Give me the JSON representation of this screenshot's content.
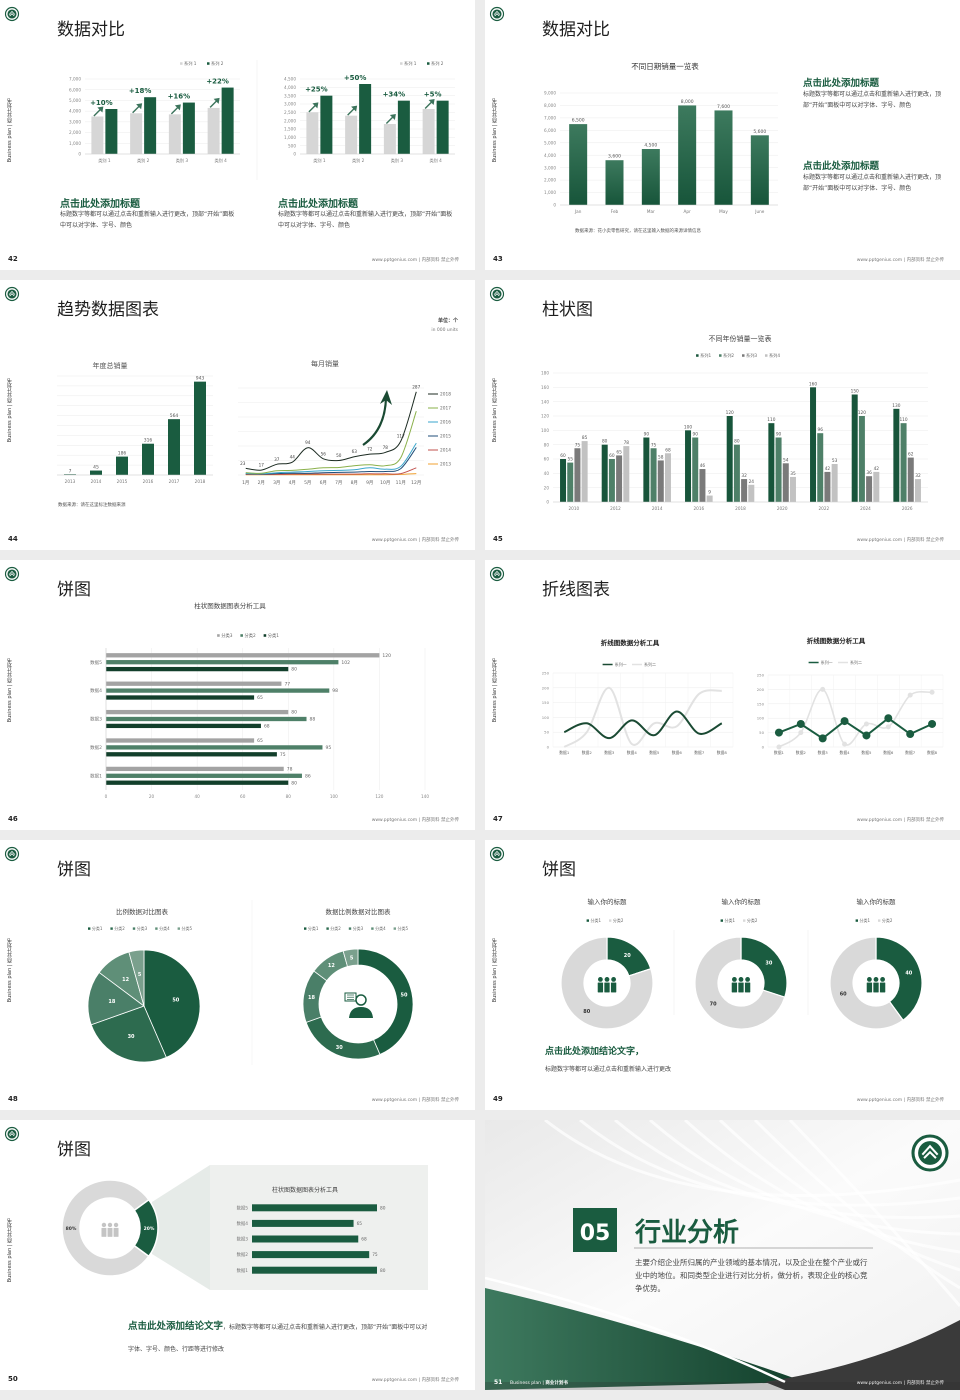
{
  "theme": {
    "primary": "#1a5c40",
    "mid_green": "#4e8068",
    "gray": "#d6d6d6",
    "dark_gray": "#7a7a7a",
    "page_bg": "#ececec"
  },
  "common": {
    "side_text": "Business plan | 商业计划书",
    "footer": "www.pptgenius.com | 内部资料 禁止外传"
  },
  "slides": [
    {
      "page": "42",
      "title": "数据对比",
      "charts": [
        {
          "type": "bar",
          "legend": [
            "系列 1",
            "系列 2"
          ],
          "colors": [
            "#d6d6d6",
            "#1a5c40"
          ],
          "categories": [
            "类别 1",
            "类别 2",
            "类别 3",
            "类别 4"
          ],
          "series": [
            {
              "name": "系列 1",
              "values": [
                3500,
                3800,
                3700,
                4300
              ]
            },
            {
              "name": "系列 2",
              "values": [
                4200,
                5300,
                4800,
                6200
              ]
            }
          ],
          "growth": [
            "+10%",
            "+18%",
            "+16%",
            "+22%"
          ],
          "ylim": [
            0,
            7000
          ],
          "ystep": 1000
        },
        {
          "type": "bar",
          "legend": [
            "系列 1",
            "系列 2"
          ],
          "colors": [
            "#d6d6d6",
            "#1a5c40"
          ],
          "categories": [
            "类别 1",
            "类别 2",
            "类别 3",
            "类别 4"
          ],
          "series": [
            {
              "name": "系列 1",
              "values": [
                2500,
                2300,
                1800,
                2700
              ]
            },
            {
              "name": "系列 2",
              "values": [
                3500,
                4200,
                3200,
                3200
              ]
            }
          ],
          "growth": [
            "+25%",
            "+50%",
            "+34%",
            "+5%"
          ],
          "ylim": [
            0,
            4500
          ],
          "ystep": 500
        }
      ],
      "blocks": [
        {
          "heading": "点击此处添加标题",
          "body": "标题数字等都可以通过点击和重新输入进行更改，顶部“开始”面板中可以对字体、字号、颜色"
        },
        {
          "heading": "点击此处添加标题",
          "body": "标题数字等都可以通过点击和重新输入进行更改，顶部“开始”面板中可以对字体、字号、颜色"
        }
      ]
    },
    {
      "page": "43",
      "title": "数据对比",
      "charts": [
        {
          "type": "bar",
          "title": "不同日期销量一览表",
          "colors": [
            "#1e5e42"
          ],
          "categories": [
            "Jan",
            "Feb",
            "Mar",
            "Apr",
            "May",
            "June"
          ],
          "series": [
            {
              "values": [
                6500,
                3600,
                4500,
                8000,
                7600,
                5600
              ]
            }
          ],
          "ylim": [
            0,
            9000
          ],
          "ystep": 1000
        }
      ],
      "source": "数据来源：花小卖零售研究，请在这里输入数据的来源详情信息",
      "blocks": [
        {
          "heading": "点击此处添加标题",
          "body": "标题数字等都可以通过点击和重新输入进行更改，顶部“开始”面板中可以对字体、字号、颜色"
        },
        {
          "heading": "点击此处添加标题",
          "body": "标题数字等都可以通过点击和重新输入进行更改，顶部“开始”面板中可以对字体、字号、颜色"
        }
      ]
    },
    {
      "page": "44",
      "title": "趋势数据图表",
      "unit": "单位：个",
      "unit_en": "in 000 units",
      "charts": [
        {
          "type": "bar",
          "title": "年度总销量",
          "colors": [
            "#1a5c40"
          ],
          "categories": [
            "2013",
            "2014",
            "2015",
            "2016",
            "2017",
            "2018"
          ],
          "series": [
            {
              "values": [
                7,
                45,
                186,
                316,
                564,
                943
              ]
            }
          ],
          "ylim": [
            0,
            1000
          ],
          "ystep": 100
        },
        {
          "type": "line",
          "title": "每月销量",
          "categories": [
            "1月",
            "2月",
            "3月",
            "4月",
            "5月",
            "6月",
            "7月",
            "8月",
            "9月",
            "10月",
            "11月",
            "12月"
          ],
          "colors": [
            "#1c2b22",
            "#8ab04a",
            "#3aa6cc",
            "#1f4e79",
            "#c0504d",
            "#f0a030"
          ],
          "series": [
            {
              "name": "2018",
              "values": [
                23,
                17,
                37,
                44,
                94,
                56,
                50,
                63,
                72,
                78,
                117,
                287
              ]
            },
            {
              "name": "2017",
              "values": [
                8,
                6,
                15,
                16,
                20,
                25,
                26,
                32,
                35,
                32,
                60,
                220
              ]
            },
            {
              "name": "2016",
              "values": [
                5,
                4,
                8,
                10,
                12,
                15,
                16,
                18,
                25,
                20,
                30,
                110
              ]
            },
            {
              "name": "2015",
              "values": [
                4,
                3,
                5,
                6,
                6,
                8,
                9,
                10,
                12,
                12,
                22,
                95
              ]
            },
            {
              "name": "2014",
              "values": [
                2,
                2,
                2,
                3,
                3,
                3,
                3,
                3,
                4,
                4,
                5,
                25
              ]
            },
            {
              "name": "2013",
              "values": [
                1,
                1,
                1,
                1,
                1,
                1,
                1,
                1,
                1,
                1,
                2,
                5
              ]
            }
          ],
          "ylim": [
            0,
            300
          ],
          "ystep": 50
        }
      ],
      "source": "数据来源：请在这里标注数据来源"
    },
    {
      "page": "45",
      "title": "柱状图",
      "charts": [
        {
          "type": "bar",
          "title": "不同年份销量一览表",
          "legend": [
            "系列1",
            "系列2",
            "系列3",
            "系列4"
          ],
          "colors": [
            "#18553b",
            "#4e8068",
            "#7a7a7a",
            "#c2c2c2"
          ],
          "categories": [
            "2010",
            "2012",
            "2014",
            "2016",
            "2018",
            "2020",
            "2022",
            "2024",
            "2026"
          ],
          "series": [
            {
              "name": "系列1",
              "values": [
                60,
                80,
                90,
                100,
                120,
                110,
                160,
                150,
                130
              ]
            },
            {
              "name": "系列2",
              "values": [
                55,
                60,
                75,
                90,
                80,
                90,
                96,
                120,
                110
              ]
            },
            {
              "name": "系列3",
              "values": [
                75,
                65,
                58,
                46,
                32,
                54,
                42,
                36,
                62
              ]
            },
            {
              "name": "系列4",
              "values": [
                85,
                78,
                68,
                9,
                24,
                35,
                53,
                42,
                32
              ]
            }
          ],
          "ylim": [
            0,
            180
          ],
          "ystep": 20
        }
      ]
    },
    {
      "page": "46",
      "title": "饼图",
      "charts": [
        {
          "type": "bar",
          "orientation": "horizontal",
          "title": "柱状图数据图表分析工具",
          "legend": [
            "分类3",
            "分类2",
            "分类1"
          ],
          "colors": [
            "#a3a3a3",
            "#4e8068",
            "#123f2b"
          ],
          "categories": [
            "数据5",
            "数据4",
            "数据3",
            "数据2",
            "数据1"
          ],
          "series": [
            {
              "name": "分类3",
              "values": [
                120,
                77,
                80,
                65,
                78
              ]
            },
            {
              "name": "分类2",
              "values": [
                102,
                98,
                88,
                95,
                86
              ]
            },
            {
              "name": "分类1",
              "values": [
                80,
                65,
                68,
                75,
                80
              ]
            }
          ],
          "xlim": [
            0,
            140
          ],
          "xstep": 20
        }
      ]
    },
    {
      "page": "47",
      "title": "折线图表",
      "charts": [
        {
          "type": "line",
          "title": "折线图数据分析工具",
          "legend": [
            "系列一",
            "系列二"
          ],
          "colors": [
            "#1a4a33",
            "#e2e2e2"
          ],
          "categories": [
            "数据1",
            "数据2",
            "数据3",
            "数据4",
            "数据5",
            "数据6",
            "数据7",
            "数据8"
          ],
          "series": [
            {
              "name": "系列一",
              "values": [
                50,
                80,
                30,
                90,
                40,
                120,
                45,
                80
              ]
            },
            {
              "name": "系列二",
              "values": [
                0,
                50,
                200,
                10,
                80,
                70,
                180,
                190
              ]
            }
          ],
          "ylim": [
            0,
            250
          ],
          "ystep": 50
        },
        {
          "type": "line",
          "title": "折线图数据分析工具",
          "legend": [
            "系列一",
            "系列二"
          ],
          "colors": [
            "#1a5c40",
            "#e2e2e2"
          ],
          "categories": [
            "数据1",
            "数据2",
            "数据3",
            "数据4",
            "数据5",
            "数据6",
            "数据7",
            "数据8"
          ],
          "series": [
            {
              "name": "系列一",
              "values": [
                50,
                80,
                30,
                90,
                40,
                100,
                45,
                80
              ]
            },
            {
              "name": "系列二",
              "values": [
                0,
                50,
                200,
                10,
                80,
                70,
                180,
                190
              ]
            }
          ],
          "ylim": [
            0,
            250
          ],
          "ystep": 50
        }
      ]
    },
    {
      "page": "48",
      "title": "饼图",
      "charts": [
        {
          "type": "pie",
          "title": "比例数据对比图表",
          "legend": [
            "分类1",
            "分类2",
            "分类3",
            "分类4",
            "分类5"
          ],
          "colors": [
            "#1a5c40",
            "#2d6b4f",
            "#4a7f68",
            "#5f8f78",
            "#7aa08d"
          ],
          "values": [
            50,
            30,
            18,
            12,
            5
          ]
        },
        {
          "type": "donut",
          "title": "数据比例数据对比图表",
          "legend": [
            "分类1",
            "分类2",
            "分类3",
            "分类4",
            "分类5"
          ],
          "colors": [
            "#1a5c40",
            "#2d6b4f",
            "#4a7f68",
            "#5f8f78",
            "#7aa08d"
          ],
          "values": [
            50,
            30,
            18,
            12,
            5
          ],
          "center_icon": "customer-service-person-icon"
        }
      ]
    },
    {
      "page": "49",
      "title": "饼图",
      "charts": [
        {
          "type": "donut",
          "title": "输入你的标题",
          "legend": [
            "分类1",
            "分类2"
          ],
          "colors": [
            "#1a5c40",
            "#d9d9d9"
          ],
          "values": [
            20,
            80
          ],
          "center_icon": "team-people-icon"
        },
        {
          "type": "donut",
          "title": "输入你的标题",
          "legend": [
            "分类1",
            "分类2"
          ],
          "colors": [
            "#1a5c40",
            "#d9d9d9"
          ],
          "values": [
            30,
            70
          ],
          "center_icon": "team-people-icon"
        },
        {
          "type": "donut",
          "title": "输入你的标题",
          "legend": [
            "分类1",
            "分类2"
          ],
          "colors": [
            "#1a5c40",
            "#d9d9d9"
          ],
          "values": [
            40,
            60
          ],
          "center_icon": "team-people-icon"
        }
      ],
      "conclusion": {
        "heading": "点击此处添加结论文字，",
        "body": "标题数字等都可以通过点击和重新输入进行更改"
      }
    },
    {
      "page": "50",
      "title": "饼图",
      "charts": [
        {
          "type": "donut",
          "values": [
            80,
            20
          ],
          "labels": [
            "80%",
            "20%"
          ],
          "colors": [
            "#d9d9d9",
            "#1a5c40"
          ],
          "center_icon": "business-people-icon"
        },
        {
          "type": "bar",
          "orientation": "horizontal",
          "title": "柱状图数据图表分析工具",
          "colors": [
            "#1a5c40"
          ],
          "categories": [
            "数据5",
            "数据4",
            "数据3",
            "数据2",
            "数据1"
          ],
          "series": [
            {
              "values": [
                80,
                65,
                68,
                75,
                80
              ]
            }
          ],
          "xlim": [
            0,
            112
          ]
        }
      ],
      "conclusion": {
        "heading": "点击此处添加结论文字",
        "body": "，标题数字等都可以通过点击和重新输入进行更改，顶部“开始”面板中可以对字体、字号、颜色、行距等进行修改"
      }
    },
    {
      "page": "51",
      "cover": true,
      "number": "05",
      "title": "行业分析",
      "body": "主要介绍企业所归属的产业领域的基本情况，以及企业在整个产业或行业中的地位。和同类型企业进行对比分析，做分析，表现企业的核心竞争优势。",
      "footer_left": "Business plan | ",
      "footer_left_bold": "商业计划书"
    }
  ]
}
